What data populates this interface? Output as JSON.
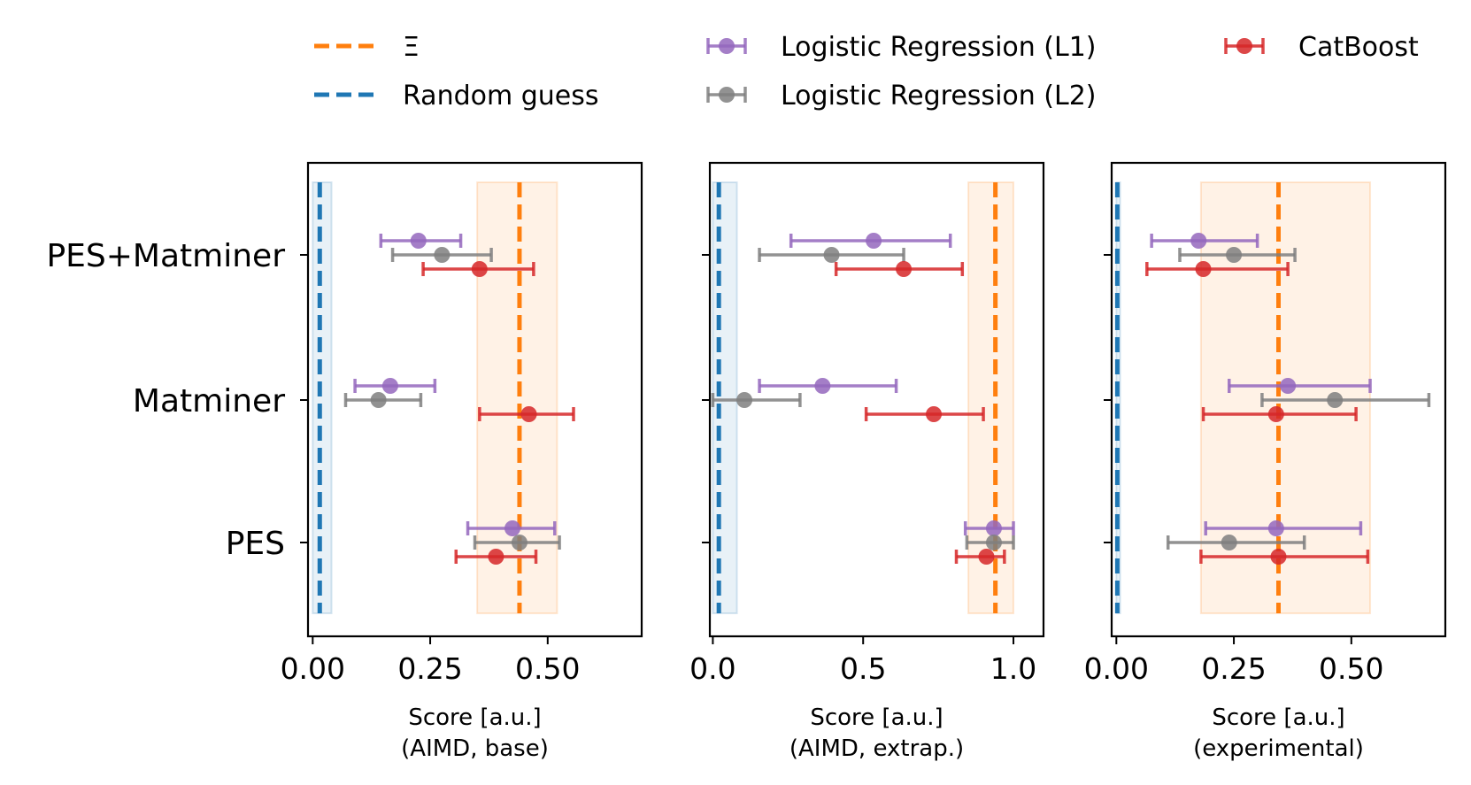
{
  "legend": [
    {
      "label": "Ξ",
      "kind": "dashed-line",
      "color": "#ff7f0e"
    },
    {
      "label": "Random guess",
      "kind": "dashed-line",
      "color": "#1f77b4"
    },
    {
      "label": "Logistic Regression (L1)",
      "kind": "errorbar",
      "color": "#9467bd"
    },
    {
      "label": "Logistic Regression (L2)",
      "kind": "errorbar",
      "color": "#7f7f7f"
    },
    {
      "label": "CatBoost",
      "kind": "errorbar",
      "color": "#d62728"
    }
  ],
  "colors": {
    "xi": "#ff7f0e",
    "random": "#1f77b4",
    "l1": "#9467bd",
    "l2": "#7f7f7f",
    "catboost": "#d62728"
  },
  "chart_data": [
    {
      "type": "errorbar",
      "xlabel": [
        "Score [a.u.]",
        "(AIMD, base)"
      ],
      "xlim": [
        -0.01,
        0.7
      ],
      "xticks": [
        0.0,
        0.25,
        0.5
      ],
      "xticklabels": [
        "0.00",
        "0.25",
        "0.50"
      ],
      "categories": [
        "PES+Matminer",
        "Matminer",
        "PES"
      ],
      "xi": {
        "value": 0.44,
        "band": [
          0.35,
          0.52
        ]
      },
      "random": {
        "value": 0.015,
        "band": [
          0.0,
          0.04
        ]
      },
      "series": [
        {
          "key": "l1",
          "points": [
            {
              "x": 0.225,
              "lo": 0.145,
              "hi": 0.315
            },
            {
              "x": 0.165,
              "lo": 0.09,
              "hi": 0.26
            },
            {
              "x": 0.425,
              "lo": 0.33,
              "hi": 0.515
            }
          ]
        },
        {
          "key": "l2",
          "points": [
            {
              "x": 0.275,
              "lo": 0.17,
              "hi": 0.38
            },
            {
              "x": 0.14,
              "lo": 0.07,
              "hi": 0.23
            },
            {
              "x": 0.44,
              "lo": 0.345,
              "hi": 0.525
            }
          ]
        },
        {
          "key": "catboost",
          "points": [
            {
              "x": 0.355,
              "lo": 0.235,
              "hi": 0.47
            },
            {
              "x": 0.46,
              "lo": 0.355,
              "hi": 0.555
            },
            {
              "x": 0.39,
              "lo": 0.305,
              "hi": 0.475
            }
          ]
        }
      ]
    },
    {
      "type": "errorbar",
      "xlabel": [
        "Score [a.u.]",
        "(AIMD, extrap.)"
      ],
      "xlim": [
        -0.01,
        1.1
      ],
      "xticks": [
        0.0,
        0.5,
        1.0
      ],
      "xticklabels": [
        "0.0",
        "0.5",
        "1.0"
      ],
      "categories": [
        "PES+Matminer",
        "Matminer",
        "PES"
      ],
      "xi": {
        "value": 0.94,
        "band": [
          0.85,
          1.0
        ]
      },
      "random": {
        "value": 0.02,
        "band": [
          0.0,
          0.08
        ]
      },
      "series": [
        {
          "key": "l1",
          "points": [
            {
              "x": 0.535,
              "lo": 0.26,
              "hi": 0.79
            },
            {
              "x": 0.365,
              "lo": 0.155,
              "hi": 0.61
            },
            {
              "x": 0.935,
              "lo": 0.84,
              "hi": 1.0
            }
          ]
        },
        {
          "key": "l2",
          "points": [
            {
              "x": 0.395,
              "lo": 0.155,
              "hi": 0.635
            },
            {
              "x": 0.105,
              "lo": 0.0,
              "hi": 0.29
            },
            {
              "x": 0.935,
              "lo": 0.845,
              "hi": 1.0
            }
          ]
        },
        {
          "key": "catboost",
          "points": [
            {
              "x": 0.635,
              "lo": 0.41,
              "hi": 0.83
            },
            {
              "x": 0.735,
              "lo": 0.51,
              "hi": 0.9
            },
            {
              "x": 0.91,
              "lo": 0.81,
              "hi": 0.97
            }
          ]
        }
      ]
    },
    {
      "type": "errorbar",
      "xlabel": [
        "Score [a.u.]",
        "(experimental)"
      ],
      "xlim": [
        -0.01,
        0.7
      ],
      "xticks": [
        0.0,
        0.25,
        0.5
      ],
      "xticklabels": [
        "0.00",
        "0.25",
        "0.50"
      ],
      "categories": [
        "PES+Matminer",
        "Matminer",
        "PES"
      ],
      "xi": {
        "value": 0.345,
        "band": [
          0.18,
          0.54
        ]
      },
      "random": {
        "value": 0.002,
        "band": [
          0.0,
          0.008
        ]
      },
      "series": [
        {
          "key": "l1",
          "points": [
            {
              "x": 0.175,
              "lo": 0.075,
              "hi": 0.3
            },
            {
              "x": 0.365,
              "lo": 0.24,
              "hi": 0.54
            },
            {
              "x": 0.34,
              "lo": 0.19,
              "hi": 0.52
            }
          ]
        },
        {
          "key": "l2",
          "points": [
            {
              "x": 0.25,
              "lo": 0.135,
              "hi": 0.38
            },
            {
              "x": 0.465,
              "lo": 0.31,
              "hi": 0.665
            },
            {
              "x": 0.24,
              "lo": 0.11,
              "hi": 0.4
            }
          ]
        },
        {
          "key": "catboost",
          "points": [
            {
              "x": 0.185,
              "lo": 0.065,
              "hi": 0.365
            },
            {
              "x": 0.34,
              "lo": 0.185,
              "hi": 0.51
            },
            {
              "x": 0.345,
              "lo": 0.18,
              "hi": 0.535
            }
          ]
        }
      ]
    }
  ]
}
